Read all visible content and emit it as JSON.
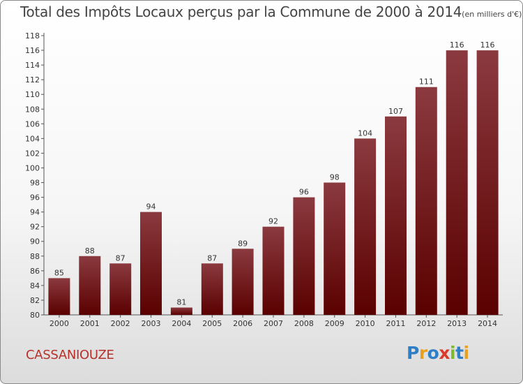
{
  "chart_data": {
    "type": "bar",
    "title": "Total des Impôts Locaux perçus par la Commune de 2000 à 2014",
    "unit_note": "(en milliers d'€)",
    "categories": [
      "2000",
      "2001",
      "2002",
      "2003",
      "2004",
      "2005",
      "2006",
      "2007",
      "2008",
      "2009",
      "2010",
      "2011",
      "2012",
      "2013",
      "2014"
    ],
    "values": [
      85,
      88,
      87,
      94,
      81,
      87,
      89,
      92,
      96,
      98,
      104,
      107,
      111,
      116,
      116
    ],
    "ylim": [
      80,
      118
    ],
    "ytick_step": 2,
    "xlabel": "",
    "ylabel": "",
    "grid": false,
    "bar_color_top": "#8b3a3f",
    "bar_color_bottom": "#5a0000"
  },
  "commune": "CASSANIOUZE",
  "logo": {
    "letters": [
      "P",
      "r",
      "o",
      "x",
      "i",
      "t",
      "i"
    ],
    "colors": [
      "#2e7fc8",
      "#e8a020",
      "#2e7fc8",
      "#d93a2b",
      "#7cba2e",
      "#2e7fc8",
      "#e8a020"
    ]
  }
}
